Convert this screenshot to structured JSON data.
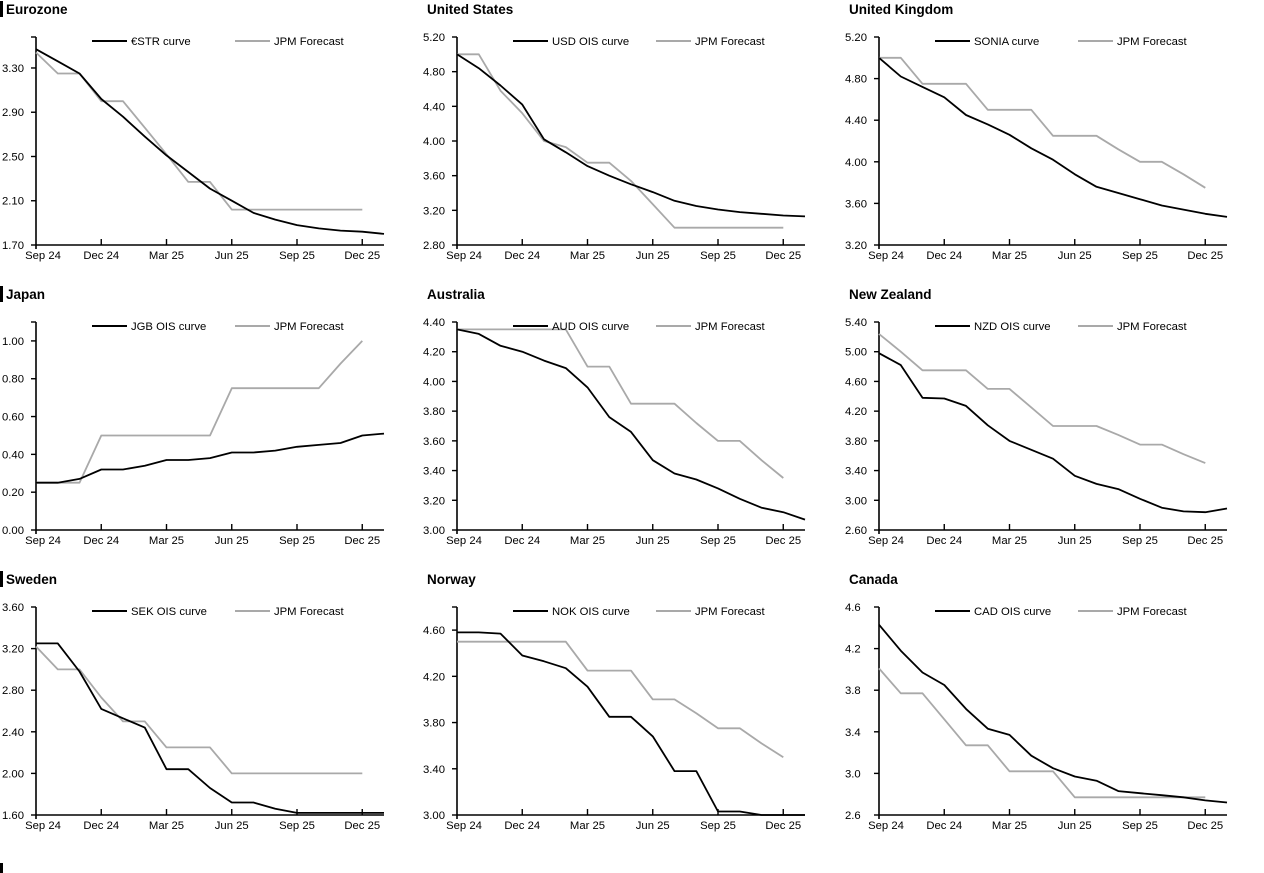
{
  "page": {
    "background": "#ffffff"
  },
  "colors": {
    "ois_line": "#000000",
    "forecast_line": "#a9a9a9",
    "axis": "#000000"
  },
  "x_axis": {
    "tick_labels": [
      "Sep 24",
      "Dec 24",
      "Mar 25",
      "Jun 25",
      "Sep 25",
      "Dec 25"
    ],
    "tick_months": [
      0,
      3,
      6,
      9,
      12,
      15
    ],
    "months_total": 16
  },
  "footer": {
    "partial_section_marker": true
  },
  "chart_data": [
    {
      "type": "line",
      "title": "Eurozone",
      "section_bar": true,
      "ylim": [
        1.7,
        3.58
      ],
      "yticks": [
        3.3,
        2.9,
        2.5,
        2.1,
        1.7
      ],
      "ytick_labels": [
        "3.30",
        "2.90",
        "2.50",
        "2.10",
        "1.70"
      ],
      "top_axis_tick": true,
      "legend_position": "top-center",
      "grid": false,
      "series": [
        {
          "name": "€STR curve",
          "color_key": "ois_line",
          "values": [
            3.47,
            3.36,
            3.25,
            3.02,
            2.86,
            2.68,
            2.51,
            2.36,
            2.21,
            2.1,
            1.99,
            1.93,
            1.88,
            1.85,
            1.83,
            1.82,
            1.8
          ]
        },
        {
          "name": "JPM Forecast",
          "color_key": "forecast_line",
          "values": [
            3.44,
            3.25,
            3.25,
            3.0,
            3.0,
            2.76,
            2.52,
            2.27,
            2.27,
            2.02,
            2.02,
            2.02,
            2.02,
            2.02,
            2.02,
            2.02
          ]
        }
      ]
    },
    {
      "type": "line",
      "title": "United States",
      "section_bar": false,
      "ylim": [
        2.8,
        5.2
      ],
      "yticks": [
        5.2,
        4.8,
        4.4,
        4.0,
        3.6,
        3.2,
        2.8
      ],
      "ytick_labels": [
        "5.20",
        "4.80",
        "4.40",
        "4.00",
        "3.60",
        "3.20",
        "2.80"
      ],
      "top_axis_tick": false,
      "legend_position": "top-center",
      "grid": false,
      "series": [
        {
          "name": "USD OIS curve",
          "color_key": "ois_line",
          "values": [
            5.0,
            4.84,
            4.64,
            4.42,
            4.02,
            3.87,
            3.71,
            3.6,
            3.5,
            3.41,
            3.31,
            3.25,
            3.21,
            3.18,
            3.16,
            3.14,
            3.13
          ]
        },
        {
          "name": "JPM Forecast",
          "color_key": "forecast_line",
          "values": [
            5.0,
            5.0,
            4.58,
            4.32,
            4.0,
            3.93,
            3.75,
            3.75,
            3.54,
            3.27,
            3.0,
            3.0,
            3.0,
            3.0,
            3.0,
            3.0
          ]
        }
      ]
    },
    {
      "type": "line",
      "title": "United Kingdom",
      "section_bar": false,
      "ylim": [
        3.2,
        5.2
      ],
      "yticks": [
        5.2,
        4.8,
        4.4,
        4.0,
        3.6,
        3.2
      ],
      "ytick_labels": [
        "5.20",
        "4.80",
        "4.40",
        "4.00",
        "3.60",
        "3.20"
      ],
      "top_axis_tick": false,
      "legend_position": "top-center",
      "grid": false,
      "series": [
        {
          "name": "SONIA curve",
          "color_key": "ois_line",
          "values": [
            5.0,
            4.82,
            4.72,
            4.62,
            4.45,
            4.36,
            4.26,
            4.13,
            4.02,
            3.88,
            3.76,
            3.7,
            3.64,
            3.58,
            3.54,
            3.5,
            3.47
          ]
        },
        {
          "name": "JPM Forecast",
          "color_key": "forecast_line",
          "values": [
            5.0,
            5.0,
            4.75,
            4.75,
            4.75,
            4.5,
            4.5,
            4.5,
            4.25,
            4.25,
            4.25,
            4.12,
            4.0,
            4.0,
            3.88,
            3.75
          ]
        }
      ]
    },
    {
      "type": "line",
      "title": "Japan",
      "section_bar": true,
      "ylim": [
        0.0,
        1.1
      ],
      "yticks": [
        1.0,
        0.8,
        0.6,
        0.4,
        0.2,
        0.0
      ],
      "ytick_labels": [
        "1.00",
        "0.80",
        "0.60",
        "0.40",
        "0.20",
        "0.00"
      ],
      "top_axis_tick": true,
      "legend_position": "top-center",
      "grid": false,
      "series": [
        {
          "name": "JGB OIS curve",
          "color_key": "ois_line",
          "values": [
            0.25,
            0.25,
            0.27,
            0.32,
            0.32,
            0.34,
            0.37,
            0.37,
            0.38,
            0.41,
            0.41,
            0.42,
            0.44,
            0.45,
            0.46,
            0.5,
            0.51
          ]
        },
        {
          "name": "JPM Forecast",
          "color_key": "forecast_line",
          "values": [
            0.25,
            0.25,
            0.25,
            0.5,
            0.5,
            0.5,
            0.5,
            0.5,
            0.5,
            0.75,
            0.75,
            0.75,
            0.75,
            0.75,
            0.88,
            1.0
          ]
        }
      ]
    },
    {
      "type": "line",
      "title": "Australia",
      "section_bar": false,
      "ylim": [
        3.0,
        4.4
      ],
      "yticks": [
        4.4,
        4.2,
        4.0,
        3.8,
        3.6,
        3.4,
        3.2,
        3.0
      ],
      "ytick_labels": [
        "4.40",
        "4.20",
        "4.00",
        "3.80",
        "3.60",
        "3.40",
        "3.20",
        "3.00"
      ],
      "top_axis_tick": false,
      "legend_position": "top-center",
      "grid": false,
      "series": [
        {
          "name": "AUD OIS curve",
          "color_key": "ois_line",
          "values": [
            4.35,
            4.32,
            4.24,
            4.2,
            4.14,
            4.09,
            3.96,
            3.76,
            3.66,
            3.47,
            3.38,
            3.34,
            3.28,
            3.21,
            3.15,
            3.12,
            3.07
          ]
        },
        {
          "name": "JPM Forecast",
          "color_key": "forecast_line",
          "values": [
            4.35,
            4.35,
            4.35,
            4.35,
            4.35,
            4.35,
            4.1,
            4.1,
            3.85,
            3.85,
            3.85,
            3.72,
            3.6,
            3.6,
            3.47,
            3.35
          ]
        }
      ]
    },
    {
      "type": "line",
      "title": "New Zealand",
      "section_bar": false,
      "ylim": [
        2.6,
        5.4
      ],
      "yticks": [
        5.4,
        5.0,
        4.6,
        4.2,
        3.8,
        3.4,
        3.0,
        2.6
      ],
      "ytick_labels": [
        "5.40",
        "5.00",
        "4.60",
        "4.20",
        "3.80",
        "3.40",
        "3.00",
        "2.60"
      ],
      "top_axis_tick": false,
      "legend_position": "top-center",
      "grid": false,
      "series": [
        {
          "name": "NZD OIS curve",
          "color_key": "ois_line",
          "values": [
            4.98,
            4.82,
            4.38,
            4.37,
            4.27,
            4.01,
            3.8,
            3.68,
            3.56,
            3.33,
            3.22,
            3.15,
            3.02,
            2.9,
            2.85,
            2.84,
            2.89
          ]
        },
        {
          "name": "JPM Forecast",
          "color_key": "forecast_line",
          "values": [
            5.24,
            5.0,
            4.75,
            4.75,
            4.75,
            4.5,
            4.5,
            4.25,
            4.0,
            4.0,
            4.0,
            3.88,
            3.75,
            3.75,
            3.62,
            3.5
          ]
        }
      ]
    },
    {
      "type": "line",
      "title": "Sweden",
      "section_bar": true,
      "ylim": [
        1.6,
        3.6
      ],
      "yticks": [
        3.6,
        3.2,
        2.8,
        2.4,
        2.0,
        1.6
      ],
      "ytick_labels": [
        "3.60",
        "3.20",
        "2.80",
        "2.40",
        "2.00",
        "1.60"
      ],
      "top_axis_tick": false,
      "legend_position": "top-center",
      "grid": false,
      "series": [
        {
          "name": "SEK OIS curve",
          "color_key": "ois_line",
          "values": [
            3.25,
            3.25,
            2.98,
            2.62,
            2.53,
            2.44,
            2.04,
            2.04,
            1.86,
            1.72,
            1.72,
            1.66,
            1.62,
            1.62,
            1.62,
            1.62,
            1.62
          ]
        },
        {
          "name": "JPM Forecast",
          "color_key": "forecast_line",
          "values": [
            3.22,
            3.0,
            3.0,
            2.73,
            2.5,
            2.5,
            2.25,
            2.25,
            2.25,
            2.0,
            2.0,
            2.0,
            2.0,
            2.0,
            2.0,
            2.0
          ]
        }
      ]
    },
    {
      "type": "line",
      "title": "Norway",
      "section_bar": false,
      "ylim": [
        3.0,
        4.8
      ],
      "yticks": [
        4.6,
        4.2,
        3.8,
        3.4,
        3.0
      ],
      "ytick_labels": [
        "4.60",
        "4.20",
        "3.80",
        "3.40",
        "3.00"
      ],
      "top_axis_tick": true,
      "legend_position": "top-center",
      "grid": false,
      "series": [
        {
          "name": "NOK OIS curve",
          "color_key": "ois_line",
          "values": [
            4.58,
            4.58,
            4.57,
            4.38,
            4.33,
            4.27,
            4.11,
            3.85,
            3.85,
            3.68,
            3.38,
            3.38,
            3.03,
            3.03,
            3.0,
            3.0,
            3.0
          ]
        },
        {
          "name": "JPM Forecast",
          "color_key": "forecast_line",
          "values": [
            4.5,
            4.5,
            4.5,
            4.5,
            4.5,
            4.5,
            4.25,
            4.25,
            4.25,
            4.0,
            4.0,
            3.88,
            3.75,
            3.75,
            3.62,
            3.5
          ]
        }
      ]
    },
    {
      "type": "line",
      "title": "Canada",
      "section_bar": false,
      "ylim": [
        2.6,
        4.6
      ],
      "yticks": [
        4.6,
        4.2,
        3.8,
        3.4,
        3.0,
        2.6
      ],
      "ytick_labels": [
        "4.6",
        "4.2",
        "3.8",
        "3.4",
        "3.0",
        "2.6"
      ],
      "top_axis_tick": false,
      "legend_position": "top-center",
      "grid": false,
      "series": [
        {
          "name": "CAD OIS curve",
          "color_key": "ois_line",
          "values": [
            4.43,
            4.18,
            3.97,
            3.85,
            3.62,
            3.43,
            3.37,
            3.17,
            3.05,
            2.97,
            2.93,
            2.83,
            2.81,
            2.79,
            2.77,
            2.74,
            2.72
          ]
        },
        {
          "name": "JPM Forecast",
          "color_key": "forecast_line",
          "values": [
            4.01,
            3.77,
            3.77,
            3.52,
            3.27,
            3.27,
            3.02,
            3.02,
            3.02,
            2.77,
            2.77,
            2.77,
            2.77,
            2.77,
            2.77,
            2.77
          ]
        }
      ]
    }
  ]
}
